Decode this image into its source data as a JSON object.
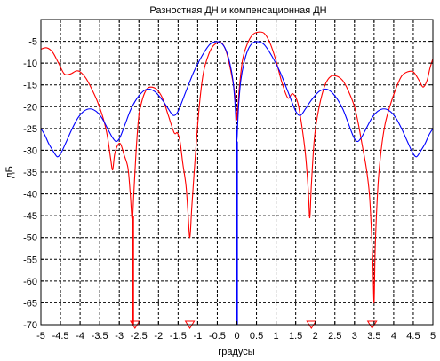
{
  "chart_data": {
    "type": "line",
    "title": "Разностная ДН и компенсационная ДН",
    "xlabel": "градусы",
    "ylabel": "дБ",
    "xlim": [
      -5,
      5
    ],
    "ylim": [
      -70,
      0
    ],
    "grid": true,
    "grid_style": "dashed",
    "x_ticks": [
      -5,
      -4.5,
      -4,
      -3.5,
      -3,
      -2.5,
      -2,
      -1.5,
      -1,
      -0.5,
      0,
      0.5,
      1,
      1.5,
      2,
      2.5,
      3,
      3.5,
      4,
      4.5,
      5
    ],
    "x_tick_labels": [
      "-5",
      "-4.5",
      "-4",
      "-3.5",
      "-3",
      "-2.5",
      "-2",
      "-1.5",
      "-1",
      "-0.5",
      "0",
      "0.5",
      "1",
      "1.5",
      "2",
      "2.5",
      "3",
      "3.5",
      "4",
      "4.5",
      "5"
    ],
    "y_ticks": [
      -5,
      -10,
      -15,
      -20,
      -25,
      -30,
      -35,
      -40,
      -45,
      -50,
      -55,
      -60,
      -65,
      -70
    ],
    "y_tick_labels": [
      "-5",
      "-10",
      "-15",
      "-20",
      "-25",
      "-30",
      "-35",
      "-40",
      "-45",
      "-50",
      "-55",
      "-60",
      "-65",
      "-70"
    ],
    "series": [
      {
        "color": "#ff0000",
        "points": [
          [
            -5.0,
            -6.8
          ],
          [
            -4.85,
            -6.5
          ],
          [
            -4.7,
            -7.5
          ],
          [
            -4.55,
            -10
          ],
          [
            -4.4,
            -12.5
          ],
          [
            -4.25,
            -12.5
          ],
          [
            -4.1,
            -11.8
          ],
          [
            -4.0,
            -12
          ],
          [
            -3.85,
            -13.5
          ],
          [
            -3.7,
            -16
          ],
          [
            -3.55,
            -19
          ],
          [
            -3.4,
            -23
          ],
          [
            -3.3,
            -27
          ],
          [
            -3.22,
            -32
          ],
          [
            -3.17,
            -34.5
          ],
          [
            -3.12,
            -31
          ],
          [
            -3.05,
            -29
          ],
          [
            -2.97,
            -28.5
          ],
          [
            -2.88,
            -31
          ],
          [
            -2.78,
            -34
          ],
          [
            -2.72,
            -40
          ],
          [
            -2.67,
            -46
          ],
          [
            -2.63,
            -40
          ],
          [
            -2.57,
            -30
          ],
          [
            -2.5,
            -22
          ],
          [
            -2.4,
            -18
          ],
          [
            -2.3,
            -16
          ],
          [
            -2.2,
            -15.5
          ],
          [
            -2.05,
            -16
          ],
          [
            -1.9,
            -18
          ],
          [
            -1.75,
            -22
          ],
          [
            -1.6,
            -26
          ],
          [
            -1.52,
            -26
          ],
          [
            -1.45,
            -28
          ],
          [
            -1.38,
            -33
          ],
          [
            -1.3,
            -38
          ],
          [
            -1.25,
            -44
          ],
          [
            -1.2,
            -50
          ],
          [
            -1.15,
            -43
          ],
          [
            -1.05,
            -30
          ],
          [
            -0.95,
            -19
          ],
          [
            -0.85,
            -12
          ],
          [
            -0.72,
            -8
          ],
          [
            -0.6,
            -6
          ],
          [
            -0.45,
            -5.2
          ],
          [
            -0.35,
            -5.8
          ],
          [
            -0.25,
            -8
          ],
          [
            -0.15,
            -12
          ],
          [
            -0.07,
            -16
          ],
          [
            -0.02,
            -20
          ],
          [
            0.0,
            -23
          ],
          [
            0.02,
            -21
          ],
          [
            0.07,
            -15
          ],
          [
            0.15,
            -9
          ],
          [
            0.27,
            -5.5
          ],
          [
            0.4,
            -3.5
          ],
          [
            0.55,
            -2.9
          ],
          [
            0.7,
            -3.2
          ],
          [
            0.85,
            -5.5
          ],
          [
            1.0,
            -9.5
          ],
          [
            1.15,
            -14.5
          ],
          [
            1.3,
            -18
          ],
          [
            1.42,
            -17
          ],
          [
            1.55,
            -19
          ],
          [
            1.65,
            -24
          ],
          [
            1.75,
            -31
          ],
          [
            1.82,
            -39
          ],
          [
            1.86,
            -45.5
          ],
          [
            1.9,
            -38
          ],
          [
            1.98,
            -27
          ],
          [
            2.1,
            -20
          ],
          [
            2.25,
            -15
          ],
          [
            2.4,
            -13
          ],
          [
            2.55,
            -13
          ],
          [
            2.7,
            -14
          ],
          [
            2.85,
            -16.5
          ],
          [
            3.0,
            -20
          ],
          [
            3.1,
            -24
          ],
          [
            3.2,
            -29
          ],
          [
            3.3,
            -34
          ],
          [
            3.38,
            -40
          ],
          [
            3.43,
            -48
          ],
          [
            3.47,
            -56
          ],
          [
            3.5,
            -65
          ],
          [
            3.53,
            -52
          ],
          [
            3.6,
            -38
          ],
          [
            3.68,
            -30
          ],
          [
            3.78,
            -24
          ],
          [
            3.9,
            -20
          ],
          [
            4.05,
            -16
          ],
          [
            4.2,
            -13
          ],
          [
            4.35,
            -12
          ],
          [
            4.5,
            -12
          ],
          [
            4.65,
            -14
          ],
          [
            4.75,
            -15.5
          ],
          [
            4.85,
            -14
          ],
          [
            4.93,
            -11
          ],
          [
            5.0,
            -9
          ]
        ]
      },
      {
        "color": "#0000ff",
        "points": [
          [
            -5.0,
            -25
          ],
          [
            -4.9,
            -26.5
          ],
          [
            -4.8,
            -28.5
          ],
          [
            -4.7,
            -30
          ],
          [
            -4.58,
            -31.5
          ],
          [
            -4.48,
            -30.5
          ],
          [
            -4.35,
            -28
          ],
          [
            -4.2,
            -25
          ],
          [
            -4.05,
            -22.5
          ],
          [
            -3.9,
            -21
          ],
          [
            -3.75,
            -20.5
          ],
          [
            -3.6,
            -21
          ],
          [
            -3.45,
            -22.5
          ],
          [
            -3.3,
            -25
          ],
          [
            -3.18,
            -27
          ],
          [
            -3.08,
            -28
          ],
          [
            -2.98,
            -27
          ],
          [
            -2.85,
            -24
          ],
          [
            -2.7,
            -20.5
          ],
          [
            -2.5,
            -17.5
          ],
          [
            -2.3,
            -16
          ],
          [
            -2.1,
            -16.5
          ],
          [
            -1.9,
            -18.5
          ],
          [
            -1.75,
            -20.5
          ],
          [
            -1.62,
            -22
          ],
          [
            -1.5,
            -21
          ],
          [
            -1.3,
            -16.5
          ],
          [
            -1.1,
            -12
          ],
          [
            -0.9,
            -8.5
          ],
          [
            -0.7,
            -5.8
          ],
          [
            -0.55,
            -5.1
          ],
          [
            -0.4,
            -5.4
          ],
          [
            -0.28,
            -7
          ],
          [
            -0.18,
            -10
          ],
          [
            -0.1,
            -14
          ],
          [
            -0.05,
            -19
          ],
          [
            -0.02,
            -24
          ],
          [
            0.0,
            -28
          ],
          [
            0.02,
            -24
          ],
          [
            0.05,
            -19
          ],
          [
            0.1,
            -14
          ],
          [
            0.18,
            -10
          ],
          [
            0.28,
            -7
          ],
          [
            0.4,
            -5.4
          ],
          [
            0.55,
            -5.1
          ],
          [
            0.7,
            -5.8
          ],
          [
            0.9,
            -8.5
          ],
          [
            1.1,
            -12
          ],
          [
            1.3,
            -16.5
          ],
          [
            1.5,
            -21
          ],
          [
            1.62,
            -22
          ],
          [
            1.75,
            -20.5
          ],
          [
            1.9,
            -18.5
          ],
          [
            2.1,
            -16.5
          ],
          [
            2.3,
            -16
          ],
          [
            2.5,
            -17.5
          ],
          [
            2.7,
            -20.5
          ],
          [
            2.85,
            -24
          ],
          [
            2.98,
            -27
          ],
          [
            3.08,
            -28
          ],
          [
            3.18,
            -27
          ],
          [
            3.3,
            -25
          ],
          [
            3.45,
            -22.5
          ],
          [
            3.6,
            -21
          ],
          [
            3.75,
            -20.5
          ],
          [
            3.9,
            -21
          ],
          [
            4.05,
            -22.5
          ],
          [
            4.2,
            -25
          ],
          [
            4.35,
            -28
          ],
          [
            4.48,
            -30.5
          ],
          [
            4.58,
            -31.5
          ],
          [
            4.7,
            -30
          ],
          [
            4.8,
            -28.5
          ],
          [
            4.9,
            -26.5
          ],
          [
            5.0,
            -25
          ]
        ]
      }
    ],
    "vertical_lines": [
      {
        "x": -2.65,
        "color": "#ff0000",
        "from": -70,
        "to": -45
      },
      {
        "x": 0.0,
        "color": "#0000ff",
        "from": -70,
        "to": -28
      }
    ],
    "markers": {
      "shape": "triangle-down",
      "color": "#ff0000",
      "y": -70,
      "x": [
        -2.6,
        -1.2,
        1.9,
        3.45
      ]
    }
  }
}
